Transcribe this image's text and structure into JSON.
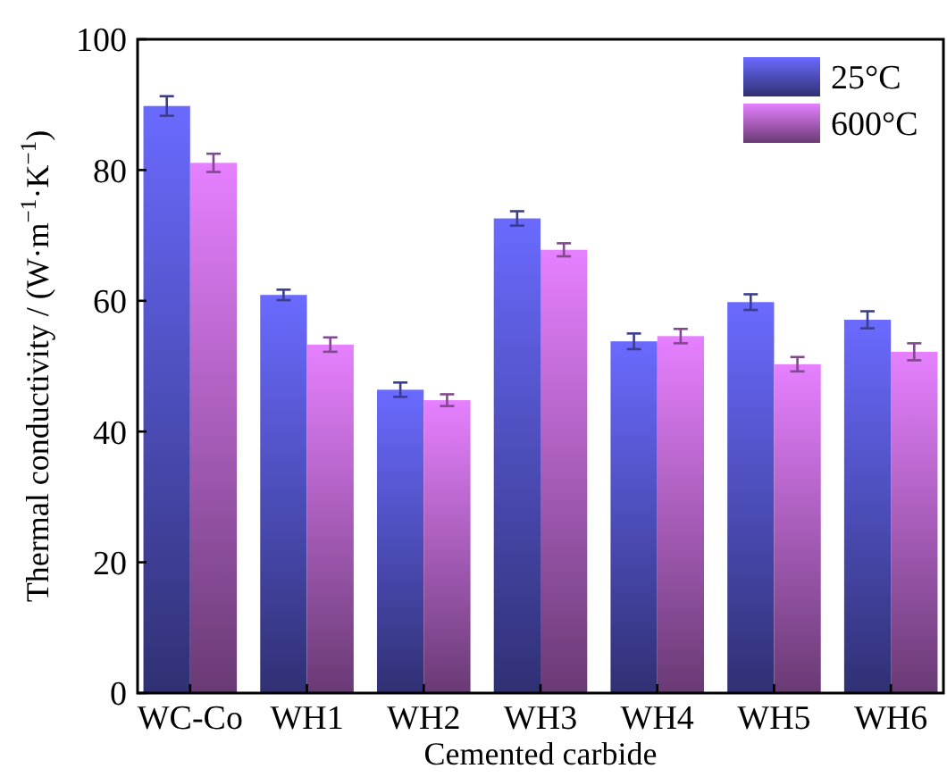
{
  "chart_data": {
    "type": "bar",
    "xlabel": "Cemented carbide",
    "ylabel": "Thermal conductivity / (W·m$^{−1}$·K$^{−1}$)",
    "categories": [
      "WC-Co",
      "WH1",
      "WH2",
      "WH3",
      "WH4",
      "WH5",
      "WH6"
    ],
    "series": [
      {
        "name": "25°C",
        "color": "#6a6aff",
        "values": [
          89.8,
          60.9,
          46.4,
          72.6,
          53.8,
          59.8,
          57.1
        ],
        "errors": [
          1.5,
          0.8,
          1.1,
          1.1,
          1.2,
          1.2,
          1.3
        ]
      },
      {
        "name": "600°C",
        "color": "#e680ff",
        "values": [
          81.1,
          53.3,
          44.8,
          67.8,
          54.6,
          50.3,
          52.2
        ],
        "errors": [
          1.4,
          1.1,
          0.9,
          1.0,
          1.1,
          1.1,
          1.3
        ]
      }
    ],
    "ylim": [
      0,
      100
    ],
    "yticks": [
      0,
      20,
      40,
      60,
      80,
      100
    ],
    "grid": false,
    "legend": "top right"
  }
}
